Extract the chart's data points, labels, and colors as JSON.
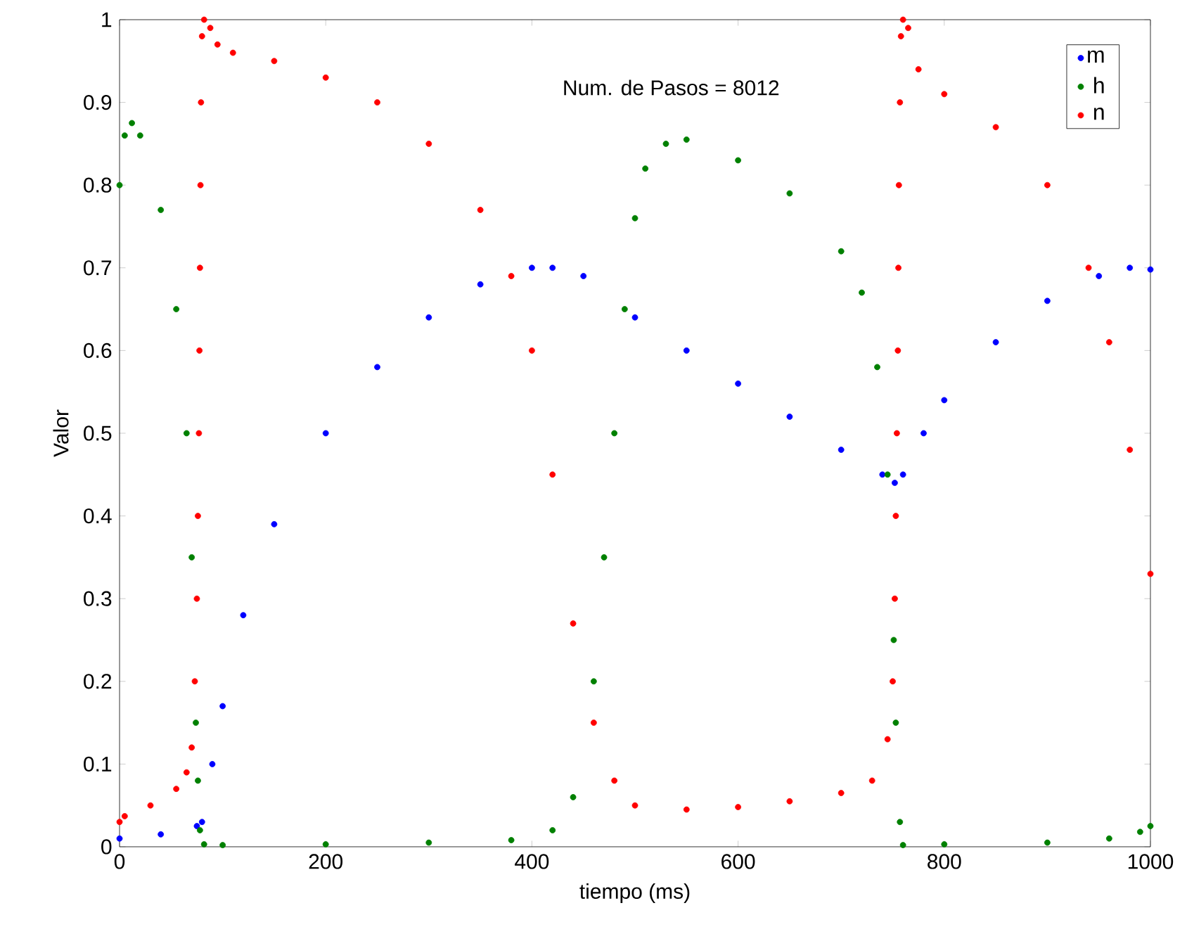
{
  "chart_data": {
    "type": "scatter",
    "xlabel": "tiempo (ms)",
    "ylabel": "Valor",
    "annotations": [
      "Num. de Pasos = 8012"
    ],
    "xlim": [
      0,
      1000
    ],
    "ylim": [
      0,
      1
    ],
    "xticks": [
      0,
      200,
      400,
      600,
      800,
      1000
    ],
    "yticks": [
      0,
      0.1,
      0.2,
      0.3,
      0.4,
      0.5,
      0.6,
      0.7,
      0.8,
      0.9,
      1
    ],
    "legend": "top right",
    "grid": false,
    "series": [
      {
        "name": "m",
        "color": "#0000ff",
        "x": [
          0,
          40,
          75,
          80,
          90,
          100,
          120,
          150,
          200,
          250,
          300,
          350,
          400,
          420,
          450,
          500,
          550,
          600,
          650,
          700,
          740,
          752,
          760,
          780,
          800,
          850,
          900,
          950,
          980,
          1000
        ],
        "values": [
          0.01,
          0.015,
          0.025,
          0.03,
          0.1,
          0.17,
          0.28,
          0.39,
          0.5,
          0.58,
          0.64,
          0.68,
          0.7,
          0.7,
          0.69,
          0.64,
          0.6,
          0.56,
          0.52,
          0.48,
          0.45,
          0.44,
          0.45,
          0.5,
          0.54,
          0.61,
          0.66,
          0.69,
          0.7,
          0.698
        ]
      },
      {
        "name": "h",
        "color": "#008000",
        "x": [
          0,
          5,
          12,
          20,
          40,
          55,
          65,
          70,
          74,
          76,
          78,
          82,
          100,
          200,
          300,
          380,
          420,
          440,
          460,
          470,
          480,
          490,
          500,
          510,
          530,
          550,
          600,
          650,
          700,
          720,
          735,
          745,
          751,
          753,
          757,
          760,
          800,
          900,
          960,
          990,
          1000
        ],
        "values": [
          0.8,
          0.86,
          0.875,
          0.86,
          0.77,
          0.65,
          0.5,
          0.35,
          0.15,
          0.08,
          0.02,
          0.003,
          0.002,
          0.003,
          0.005,
          0.008,
          0.02,
          0.06,
          0.2,
          0.35,
          0.5,
          0.65,
          0.76,
          0.82,
          0.85,
          0.855,
          0.83,
          0.79,
          0.72,
          0.67,
          0.58,
          0.45,
          0.25,
          0.15,
          0.03,
          0.002,
          0.003,
          0.005,
          0.01,
          0.018,
          0.025
        ]
      },
      {
        "name": "n",
        "color": "#ff0000",
        "x": [
          0,
          5,
          30,
          55,
          65,
          70,
          73,
          75,
          76,
          77,
          77.5,
          78,
          78.5,
          79,
          80,
          82,
          88,
          95,
          110,
          150,
          200,
          250,
          300,
          350,
          380,
          400,
          420,
          440,
          460,
          480,
          500,
          550,
          600,
          650,
          700,
          730,
          745,
          750,
          752,
          753,
          754,
          755,
          755.5,
          756,
          757,
          758,
          760,
          765,
          775,
          800,
          850,
          900,
          940,
          960,
          980,
          1000
        ],
        "values": [
          0.03,
          0.037,
          0.05,
          0.07,
          0.09,
          0.12,
          0.2,
          0.3,
          0.4,
          0.5,
          0.6,
          0.7,
          0.8,
          0.9,
          0.98,
          1.0,
          0.99,
          0.97,
          0.96,
          0.95,
          0.93,
          0.9,
          0.85,
          0.77,
          0.69,
          0.6,
          0.45,
          0.27,
          0.15,
          0.08,
          0.05,
          0.045,
          0.048,
          0.055,
          0.065,
          0.08,
          0.13,
          0.2,
          0.3,
          0.4,
          0.5,
          0.6,
          0.7,
          0.8,
          0.9,
          0.98,
          1.0,
          0.99,
          0.94,
          0.91,
          0.87,
          0.8,
          0.7,
          0.61,
          0.48,
          0.33
        ]
      }
    ]
  }
}
